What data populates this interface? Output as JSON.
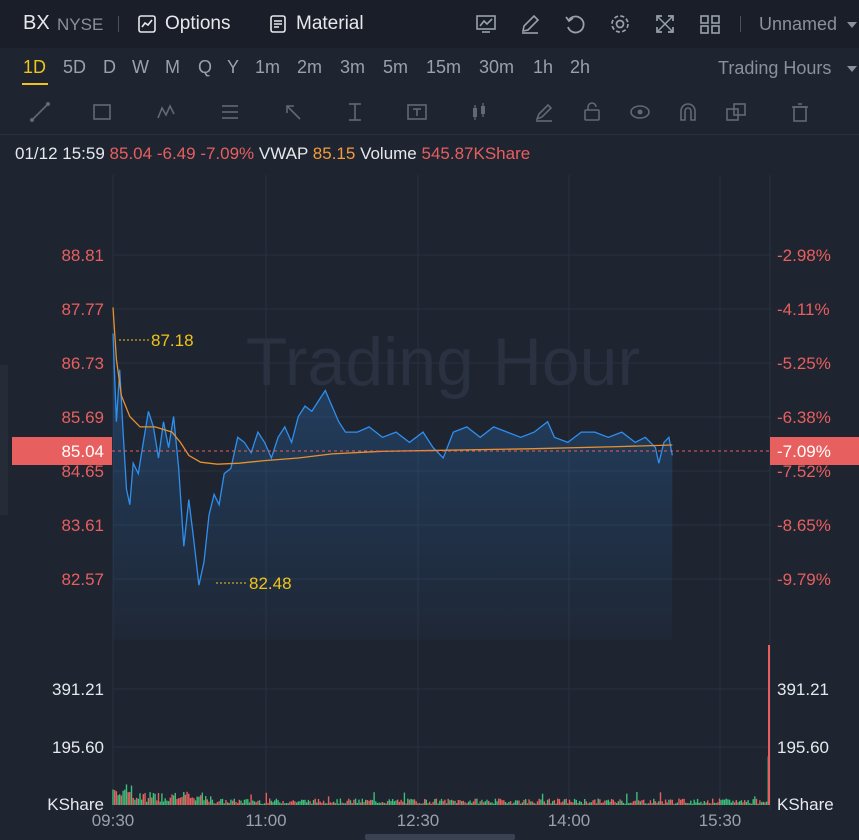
{
  "header": {
    "symbol": "BX",
    "exchange": "NYSE",
    "options_label": "Options",
    "material_label": "Material",
    "layout_name": "Unnamed"
  },
  "timeframes": [
    "1D",
    "5D",
    "D",
    "W",
    "M",
    "Q",
    "Y",
    "1m",
    "2m",
    "3m",
    "5m",
    "15m",
    "30m",
    "1h",
    "2h"
  ],
  "active_timeframe": "1D",
  "session_label": "Trading Hours",
  "info_bar": {
    "datetime": "01/12 15:59",
    "price": "85.04",
    "change": "-6.49",
    "change_pct": "-7.09%",
    "vwap_label": "VWAP",
    "vwap_value": "85.15",
    "volume_label": "Volume",
    "volume_value": "545.87KShare"
  },
  "watermark": "Trading Hour",
  "colors": {
    "up": "#e85f5f",
    "down": "#3cbf7a",
    "price_line": "#2f8fef",
    "vwap_line": "#e6912e",
    "accent": "#f0c419"
  },
  "chart_data": {
    "type": "line",
    "price_axis_left": [
      "88.81",
      "87.77",
      "86.73",
      "85.69",
      "84.65",
      "83.61",
      "82.57"
    ],
    "price_axis_right": [
      "-2.98%",
      "-4.11%",
      "-5.25%",
      "-6.38%",
      "-7.52%",
      "-8.65%",
      "-9.79%"
    ],
    "current_price_label": "85.04",
    "current_pct_label": "-7.09%",
    "high_label": "87.18",
    "low_label": "82.48",
    "volume_axis": [
      "391.21",
      "195.60",
      "KShare"
    ],
    "x_ticks": [
      "09:30",
      "11:00",
      "12:30",
      "14:00",
      "15:30"
    ],
    "price_series": [
      {
        "t": 0,
        "p": 87.3
      },
      {
        "t": 2,
        "p": 85.6
      },
      {
        "t": 4,
        "p": 86.6
      },
      {
        "t": 6,
        "p": 85.4
      },
      {
        "t": 8,
        "p": 84.3
      },
      {
        "t": 10,
        "p": 84.0
      },
      {
        "t": 12,
        "p": 84.8
      },
      {
        "t": 15,
        "p": 84.6
      },
      {
        "t": 18,
        "p": 85.2
      },
      {
        "t": 21,
        "p": 85.8
      },
      {
        "t": 24,
        "p": 85.5
      },
      {
        "t": 27,
        "p": 84.9
      },
      {
        "t": 30,
        "p": 85.6
      },
      {
        "t": 33,
        "p": 85.1
      },
      {
        "t": 36,
        "p": 85.7
      },
      {
        "t": 39,
        "p": 84.7
      },
      {
        "t": 42,
        "p": 83.2
      },
      {
        "t": 45,
        "p": 84.1
      },
      {
        "t": 48,
        "p": 83.3
      },
      {
        "t": 51,
        "p": 82.45
      },
      {
        "t": 54,
        "p": 82.9
      },
      {
        "t": 57,
        "p": 83.8
      },
      {
        "t": 60,
        "p": 84.2
      },
      {
        "t": 63,
        "p": 84.0
      },
      {
        "t": 66,
        "p": 84.6
      },
      {
        "t": 70,
        "p": 84.7
      },
      {
        "t": 74,
        "p": 85.3
      },
      {
        "t": 78,
        "p": 85.2
      },
      {
        "t": 82,
        "p": 85.0
      },
      {
        "t": 86,
        "p": 85.4
      },
      {
        "t": 90,
        "p": 85.2
      },
      {
        "t": 94,
        "p": 84.9
      },
      {
        "t": 98,
        "p": 85.3
      },
      {
        "t": 102,
        "p": 85.5
      },
      {
        "t": 106,
        "p": 85.2
      },
      {
        "t": 110,
        "p": 85.7
      },
      {
        "t": 114,
        "p": 85.9
      },
      {
        "t": 118,
        "p": 85.8
      },
      {
        "t": 122,
        "p": 86.0
      },
      {
        "t": 126,
        "p": 86.2
      },
      {
        "t": 130,
        "p": 85.9
      },
      {
        "t": 134,
        "p": 85.6
      },
      {
        "t": 138,
        "p": 85.4
      },
      {
        "t": 145,
        "p": 85.4
      },
      {
        "t": 152,
        "p": 85.5
      },
      {
        "t": 160,
        "p": 85.3
      },
      {
        "t": 168,
        "p": 85.4
      },
      {
        "t": 176,
        "p": 85.2
      },
      {
        "t": 184,
        "p": 85.4
      },
      {
        "t": 190,
        "p": 85.1
      },
      {
        "t": 196,
        "p": 84.9
      },
      {
        "t": 202,
        "p": 85.4
      },
      {
        "t": 210,
        "p": 85.5
      },
      {
        "t": 218,
        "p": 85.3
      },
      {
        "t": 226,
        "p": 85.5
      },
      {
        "t": 234,
        "p": 85.4
      },
      {
        "t": 242,
        "p": 85.3
      },
      {
        "t": 250,
        "p": 85.4
      },
      {
        "t": 258,
        "p": 85.6
      },
      {
        "t": 262,
        "p": 85.3
      },
      {
        "t": 270,
        "p": 85.2
      },
      {
        "t": 278,
        "p": 85.4
      },
      {
        "t": 286,
        "p": 85.4
      },
      {
        "t": 294,
        "p": 85.3
      },
      {
        "t": 302,
        "p": 85.4
      },
      {
        "t": 310,
        "p": 85.2
      },
      {
        "t": 316,
        "p": 85.3
      },
      {
        "t": 322,
        "p": 85.1
      },
      {
        "t": 324,
        "p": 84.8
      },
      {
        "t": 327,
        "p": 85.2
      },
      {
        "t": 330,
        "p": 85.3
      },
      {
        "t": 332,
        "p": 84.95
      }
    ],
    "vwap_series": [
      {
        "t": 0,
        "p": 87.8
      },
      {
        "t": 2,
        "p": 86.8
      },
      {
        "t": 5,
        "p": 86.1
      },
      {
        "t": 10,
        "p": 85.7
      },
      {
        "t": 16,
        "p": 85.5
      },
      {
        "t": 25,
        "p": 85.5
      },
      {
        "t": 35,
        "p": 85.4
      },
      {
        "t": 40,
        "p": 85.2
      },
      {
        "t": 45,
        "p": 84.95
      },
      {
        "t": 52,
        "p": 84.82
      },
      {
        "t": 62,
        "p": 84.78
      },
      {
        "t": 75,
        "p": 84.8
      },
      {
        "t": 90,
        "p": 84.85
      },
      {
        "t": 110,
        "p": 84.9
      },
      {
        "t": 130,
        "p": 84.98
      },
      {
        "t": 160,
        "p": 85.03
      },
      {
        "t": 200,
        "p": 85.05
      },
      {
        "t": 250,
        "p": 85.08
      },
      {
        "t": 300,
        "p": 85.12
      },
      {
        "t": 332,
        "p": 85.15
      }
    ],
    "volume_max_kshare": 545.87
  }
}
